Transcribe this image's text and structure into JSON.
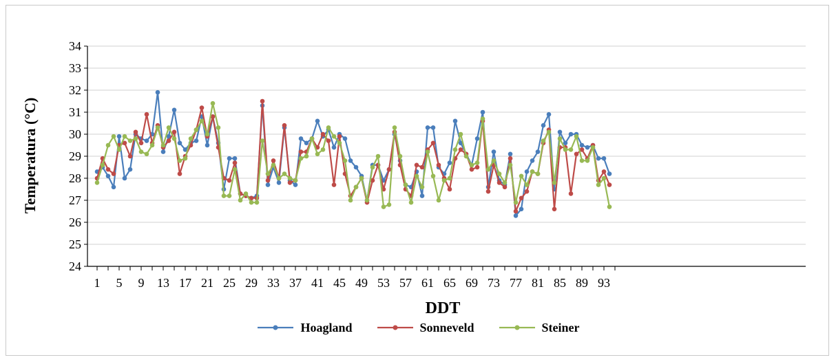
{
  "chart_data": {
    "type": "line",
    "xlabel": "DDT",
    "ylabel": "Temperatura  (°C)",
    "ylim": [
      24,
      34
    ],
    "yticks": [
      24,
      25,
      26,
      27,
      28,
      29,
      30,
      31,
      32,
      33,
      34
    ],
    "xlim": [
      1,
      96
    ],
    "xtick_labels": [
      1,
      5,
      9,
      13,
      17,
      21,
      25,
      29,
      33,
      37,
      41,
      45,
      49,
      53,
      57,
      61,
      65,
      69,
      73,
      77,
      81,
      85,
      89,
      93
    ],
    "grid": "horizontal",
    "legend_position": "bottom",
    "x": [
      1,
      2,
      3,
      4,
      5,
      6,
      7,
      8,
      9,
      10,
      11,
      12,
      13,
      14,
      15,
      16,
      17,
      18,
      19,
      20,
      21,
      22,
      23,
      24,
      25,
      26,
      27,
      28,
      29,
      30,
      31,
      32,
      33,
      34,
      35,
      36,
      37,
      38,
      39,
      40,
      41,
      42,
      43,
      44,
      45,
      46,
      47,
      48,
      49,
      50,
      51,
      52,
      53,
      54,
      55,
      56,
      57,
      58,
      59,
      60,
      61,
      62,
      63,
      64,
      65,
      66,
      67,
      68,
      69,
      70,
      71,
      72,
      73,
      74,
      75,
      76,
      77,
      78,
      79,
      80,
      81,
      82,
      83,
      84,
      85,
      86,
      87,
      88,
      89,
      90,
      91,
      92,
      93,
      94
    ],
    "series": [
      {
        "name": "Hoagland",
        "color": "#4a7ebb",
        "values": [
          28.3,
          28.5,
          28.1,
          27.6,
          29.9,
          28.0,
          28.4,
          30.0,
          29.8,
          29.7,
          30.0,
          31.9,
          29.2,
          29.9,
          31.1,
          29.6,
          29.3,
          29.6,
          29.7,
          30.8,
          29.5,
          30.8,
          29.6,
          27.5,
          28.9,
          28.9,
          27.3,
          27.2,
          27.1,
          27.2,
          31.3,
          27.7,
          28.5,
          27.8,
          30.3,
          27.9,
          27.7,
          29.8,
          29.6,
          29.8,
          30.6,
          29.9,
          30.2,
          29.4,
          30.0,
          29.8,
          28.8,
          28.5,
          28.1,
          27.0,
          28.6,
          28.6,
          27.9,
          28.4,
          30.0,
          28.8,
          27.7,
          27.6,
          28.3,
          27.2,
          30.3,
          30.3,
          28.5,
          28.2,
          28.7,
          30.6,
          29.6,
          29.1,
          28.6,
          29.8,
          31.0,
          27.6,
          29.2,
          27.9,
          27.7,
          29.1,
          26.3,
          26.6,
          28.3,
          28.8,
          29.2,
          30.4,
          30.9,
          27.5,
          30.1,
          29.6,
          30.0,
          30.0,
          29.5,
          29.4,
          29.5,
          28.9,
          28.9,
          28.2
        ]
      },
      {
        "name": "Sonneveld",
        "color": "#be4b48",
        "values": [
          28.0,
          28.9,
          28.4,
          28.2,
          29.5,
          29.6,
          29.0,
          30.1,
          29.6,
          30.9,
          29.6,
          30.4,
          29.4,
          29.7,
          30.1,
          28.2,
          29.0,
          29.5,
          30.2,
          31.2,
          29.9,
          30.8,
          29.4,
          28.0,
          27.9,
          28.7,
          27.3,
          27.2,
          27.1,
          27.1,
          31.5,
          27.9,
          28.8,
          28.0,
          30.4,
          27.8,
          27.9,
          29.2,
          29.2,
          29.8,
          29.4,
          30.0,
          29.7,
          27.7,
          29.9,
          28.2,
          27.2,
          27.6,
          28.0,
          26.9,
          27.9,
          28.6,
          27.5,
          28.4,
          30.1,
          28.6,
          27.5,
          27.2,
          28.6,
          28.5,
          29.3,
          29.6,
          28.6,
          28.0,
          27.5,
          28.9,
          29.3,
          29.1,
          28.4,
          28.5,
          30.6,
          27.4,
          28.6,
          27.8,
          27.6,
          28.9,
          26.5,
          27.1,
          27.4,
          28.3,
          28.2,
          29.6,
          30.2,
          26.6,
          29.4,
          29.4,
          27.3,
          29.1,
          29.3,
          28.9,
          29.5,
          27.9,
          28.3,
          27.7
        ]
      },
      {
        "name": "Steiner",
        "color": "#98b954",
        "values": [
          27.8,
          28.6,
          29.5,
          29.9,
          29.3,
          29.9,
          29.7,
          29.8,
          29.2,
          29.1,
          29.5,
          30.3,
          29.5,
          30.3,
          29.8,
          28.8,
          28.9,
          29.8,
          30.2,
          30.6,
          30.0,
          31.4,
          30.3,
          27.2,
          27.2,
          28.4,
          27.0,
          27.3,
          26.9,
          26.9,
          29.7,
          28.2,
          28.6,
          28.0,
          28.2,
          28.0,
          27.9,
          28.9,
          29.0,
          29.8,
          29.1,
          29.3,
          30.3,
          29.9,
          29.6,
          28.8,
          27.0,
          27.6,
          28.0,
          27.0,
          28.5,
          29.0,
          26.7,
          26.8,
          30.3,
          29.0,
          27.7,
          26.9,
          28.1,
          27.6,
          29.2,
          28.1,
          27.0,
          27.9,
          28.0,
          29.3,
          30.0,
          29.0,
          28.6,
          28.7,
          30.7,
          28.4,
          28.8,
          28.2,
          27.8,
          28.6,
          26.9,
          28.1,
          27.7,
          28.3,
          28.2,
          29.7,
          30.1,
          27.8,
          29.8,
          29.3,
          29.3,
          29.9,
          28.8,
          28.8,
          29.4,
          27.7,
          28.0,
          26.7
        ]
      }
    ]
  }
}
